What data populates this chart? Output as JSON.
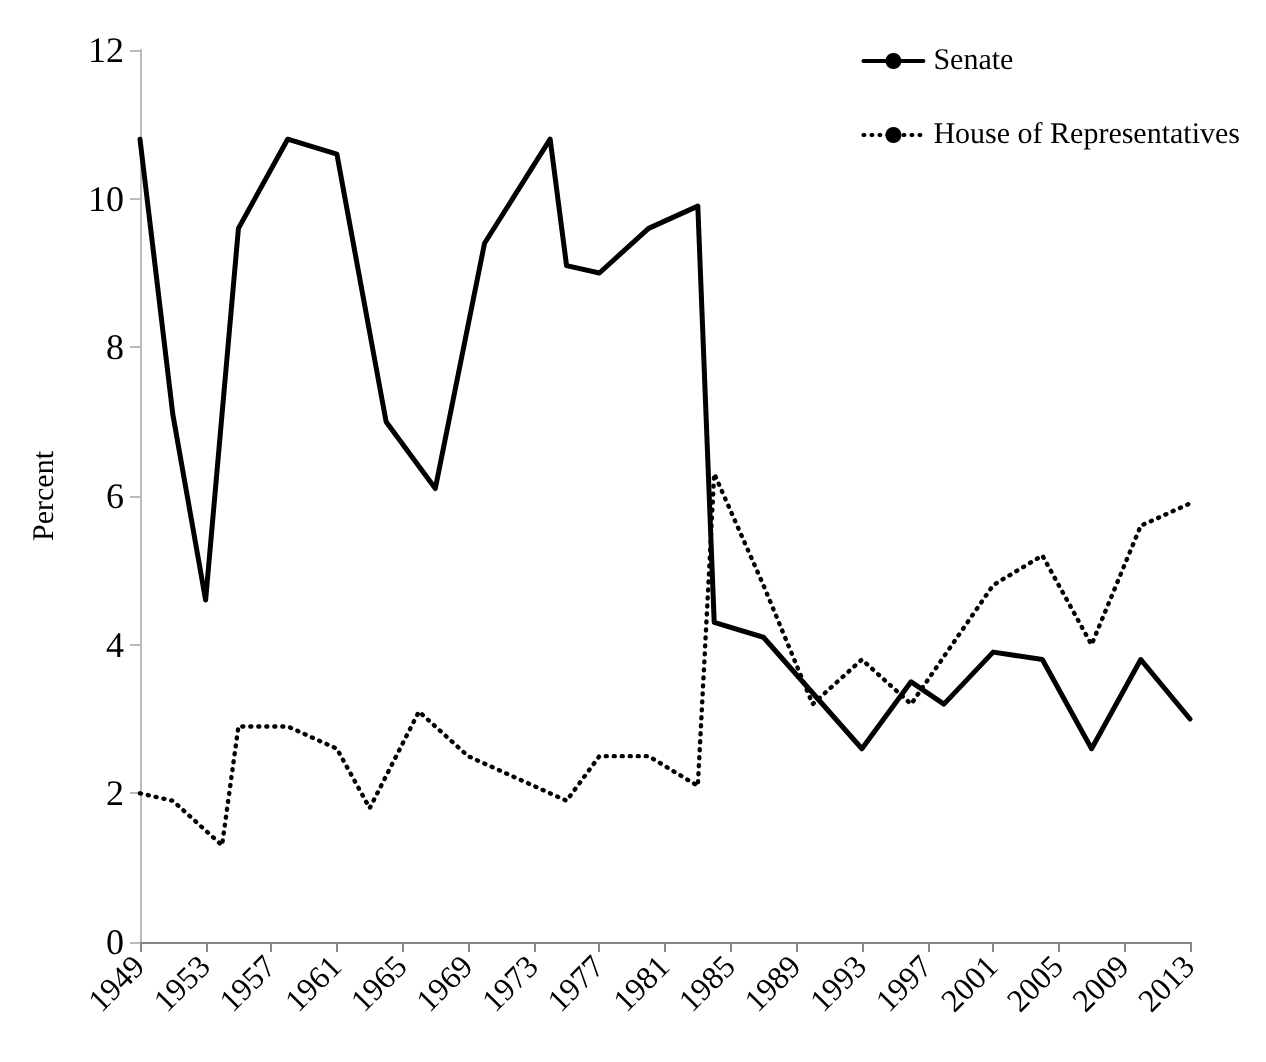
{
  "chart_data": {
    "type": "line",
    "ylabel": "Percent",
    "xlim": [
      1949,
      2013
    ],
    "xticks": [
      1949,
      1953,
      1957,
      1961,
      1965,
      1969,
      1973,
      1977,
      1981,
      1985,
      1989,
      1993,
      1997,
      2001,
      2005,
      2009,
      2013
    ],
    "ylim": [
      0,
      12
    ],
    "yticks": [
      0,
      2,
      4,
      6,
      8,
      10,
      12
    ],
    "grid": false,
    "legend": "top right",
    "marker": "none",
    "series": [
      {
        "name": "Senate",
        "color": "#000000",
        "line_style": "solid",
        "x": [
          1949,
          1951,
          1953,
          1955,
          1958,
          1961,
          1964,
          1967,
          1970,
          1974,
          1975,
          1977,
          1980,
          1983,
          1984,
          1987,
          1993,
          1996,
          1998,
          2001,
          2004,
          2007,
          2010,
          2013
        ],
        "values": [
          10.8,
          7.1,
          4.6,
          9.6,
          10.8,
          10.6,
          7.0,
          6.1,
          9.4,
          10.8,
          9.1,
          9.0,
          9.6,
          9.9,
          4.3,
          4.1,
          2.6,
          3.5,
          3.2,
          3.9,
          3.8,
          2.6,
          3.8,
          3.0
        ]
      },
      {
        "name": "House of Representatives",
        "color": "#000000",
        "line_style": "dotted",
        "x": [
          1949,
          1951,
          1954,
          1955,
          1958,
          1961,
          1963,
          1966,
          1969,
          1972,
          1975,
          1977,
          1980,
          1983,
          1984,
          1987,
          1990,
          1993,
          1996,
          2001,
          2004,
          2007,
          2010,
          2013
        ],
        "values": [
          2.0,
          1.9,
          1.3,
          2.9,
          2.9,
          2.6,
          1.8,
          3.1,
          2.5,
          2.2,
          1.9,
          2.5,
          2.5,
          2.1,
          6.3,
          4.8,
          3.2,
          3.8,
          3.2,
          4.8,
          5.2,
          4.0,
          5.6,
          5.9
        ]
      }
    ]
  }
}
